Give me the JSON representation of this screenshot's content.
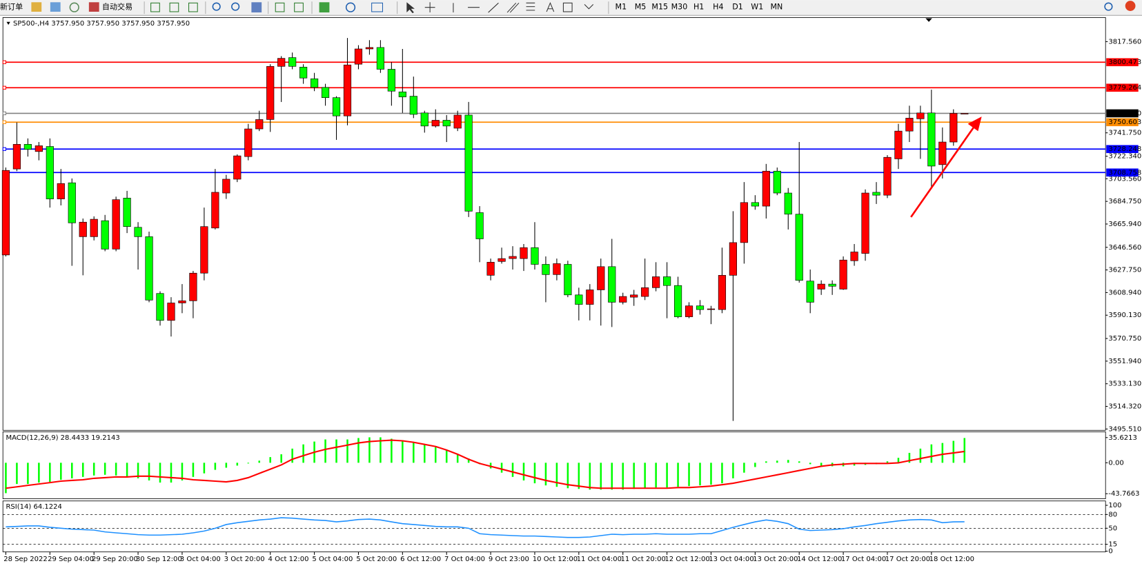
{
  "toolbar": {
    "new_order": "新订单",
    "auto_trading": "自动交易",
    "timeframes": [
      "M1",
      "M5",
      "M15",
      "M30",
      "H1",
      "H4",
      "D1",
      "W1",
      "MN"
    ]
  },
  "chart_data": [
    {
      "type": "candlestick",
      "title": "SP500-,H4  3757.950 3757.950 3757.950 3757.950",
      "categories": [
        "28 Sep 2022",
        null,
        null,
        null,
        "29 Sep 04:00",
        null,
        null,
        null,
        "29 Sep 20:00",
        null,
        null,
        null,
        "30 Sep 12:00",
        null,
        null,
        null,
        "3 Oct 04:00",
        null,
        null,
        null,
        "3 Oct 20:00",
        null,
        null,
        null,
        "4 Oct 12:00",
        null,
        null,
        null,
        "5 Oct 04:00",
        null,
        null,
        null,
        "5 Oct 20:00",
        null,
        null,
        null,
        "6 Oct 12:00",
        null,
        null,
        null,
        "7 Oct 04:00",
        null,
        null,
        null,
        "9 Oct 23:00",
        null,
        null,
        null,
        "10 Oct 12:00",
        null,
        null,
        null,
        "11 Oct 04:00",
        null,
        null,
        null,
        "11 Oct 20:00",
        null,
        null,
        null,
        "12 Oct 12:00",
        null,
        null,
        null,
        "13 Oct 04:00",
        null,
        null,
        null,
        "13 Oct 20:00",
        null,
        null,
        null,
        "14 Oct 12:00",
        null,
        null,
        null,
        "17 Oct 04:00",
        null,
        null,
        null,
        "17 Oct 20:00",
        null,
        null,
        null,
        "18 Oct 12:00",
        null,
        null,
        null
      ],
      "open": [
        3640.2,
        3711.7,
        3732.2,
        3726.2,
        3730.4,
        3686.8,
        3700.2,
        3655.4,
        3655.4,
        3668.7,
        3645.1,
        3687.5,
        3663.2,
        3655.4,
        3608.2,
        3585.8,
        3600.3,
        3602.1,
        3625.1,
        3662.6,
        3691.7,
        3703.2,
        3722.0,
        3745.0,
        3752.8,
        3797.0,
        3804.3,
        3796.4,
        3786.7,
        3779.5,
        3771.0,
        3755.8,
        3798.8,
        3811.5,
        3812.7,
        3794.6,
        3775.8,
        3772.2,
        3758.3,
        3747.4,
        3752.2,
        3745.6,
        3756.5,
        3675.4,
        3623.3,
        3634.8,
        3637.2,
        3637.2,
        3646.3,
        3632.4,
        3623.9,
        3632.4,
        3607.0,
        3599.1,
        3611.2,
        3630.5,
        3600.9,
        3605.1,
        3605.7,
        3613.0,
        3622.1,
        3614.8,
        3588.8,
        3597.9,
        3594.8,
        3594.8,
        3623.3,
        3650.5,
        3683.8,
        3680.8,
        3709.9,
        3691.7,
        3674.1,
        3618.5,
        3611.8,
        3616.0,
        3611.8,
        3635.4,
        3641.5,
        3692.3,
        3689.9,
        3720.1,
        3743.2,
        3753.4,
        3758.3,
        3715.3,
        3734.1,
        3757.95
      ],
      "high": [
        3712.9,
        3750.4,
        3737.1,
        3734.1,
        3737.1,
        3711.7,
        3703.8,
        3670.5,
        3672.3,
        3673.5,
        3688.7,
        3693.5,
        3667.5,
        3659.6,
        3610.0,
        3605.1,
        3616.0,
        3626.9,
        3679.6,
        3711.7,
        3706.8,
        3723.8,
        3749.2,
        3760.1,
        3798.8,
        3805.5,
        3808.5,
        3798.8,
        3791.6,
        3782.5,
        3772.2,
        3820.6,
        3814.6,
        3818.8,
        3818.8,
        3800.6,
        3811.5,
        3788.5,
        3760.1,
        3761.3,
        3756.5,
        3760.1,
        3767.4,
        3680.8,
        3637.2,
        3646.3,
        3647.5,
        3649.3,
        3667.5,
        3639.0,
        3637.2,
        3635.4,
        3613.0,
        3616.0,
        3637.2,
        3653.6,
        3608.8,
        3611.2,
        3637.2,
        3634.2,
        3634.2,
        3622.1,
        3600.9,
        3602.7,
        3597.9,
        3646.3,
        3676.6,
        3700.8,
        3689.9,
        3715.9,
        3712.9,
        3695.9,
        3734.1,
        3628.1,
        3619.1,
        3619.1,
        3639.0,
        3649.3,
        3694.7,
        3700.8,
        3723.2,
        3749.2,
        3764.3,
        3764.3,
        3777.6,
        3746.2,
        3761.3,
        3757.95
      ],
      "low": [
        3639.0,
        3709.9,
        3722.0,
        3718.9,
        3679.6,
        3681.4,
        3631.2,
        3623.3,
        3652.3,
        3643.3,
        3643.3,
        3658.4,
        3628.1,
        3600.9,
        3581.5,
        3572.4,
        3591.8,
        3587.6,
        3619.1,
        3661.4,
        3686.8,
        3700.8,
        3718.9,
        3743.2,
        3742.5,
        3767.4,
        3794.6,
        3782.5,
        3776.4,
        3764.3,
        3735.9,
        3748.0,
        3794.6,
        3806.7,
        3791.6,
        3764.3,
        3758.3,
        3754.0,
        3741.9,
        3746.2,
        3734.1,
        3743.2,
        3671.7,
        3634.2,
        3619.1,
        3633.0,
        3628.1,
        3626.9,
        3628.1,
        3600.9,
        3619.1,
        3605.1,
        3585.8,
        3585.8,
        3581.5,
        3580.3,
        3599.1,
        3597.9,
        3602.7,
        3610.0,
        3587.6,
        3587.6,
        3587.6,
        3590.6,
        3582.7,
        3591.8,
        3502.2,
        3633.0,
        3677.8,
        3670.5,
        3689.9,
        3661.4,
        3617.2,
        3591.8,
        3607.0,
        3607.0,
        3611.2,
        3631.2,
        3635.4,
        3682.6,
        3687.5,
        3711.7,
        3734.1,
        3720.1,
        3695.9,
        3703.8,
        3731.0,
        3757.95
      ],
      "close": [
        3710.5,
        3732.2,
        3728.0,
        3731.0,
        3686.8,
        3699.6,
        3666.9,
        3667.5,
        3669.9,
        3645.1,
        3686.2,
        3663.8,
        3655.4,
        3602.7,
        3585.8,
        3600.3,
        3602.1,
        3625.1,
        3663.8,
        3692.3,
        3703.2,
        3722.6,
        3745.0,
        3752.8,
        3797.0,
        3803.7,
        3797.0,
        3787.3,
        3779.5,
        3771.0,
        3755.8,
        3798.2,
        3811.5,
        3812.7,
        3794.6,
        3776.4,
        3771.6,
        3757.1,
        3747.4,
        3752.2,
        3747.4,
        3756.5,
        3676.6,
        3653.6,
        3634.2,
        3637.2,
        3639.0,
        3646.3,
        3632.4,
        3623.9,
        3633.0,
        3607.0,
        3599.1,
        3611.2,
        3630.5,
        3600.9,
        3605.7,
        3607.0,
        3613.0,
        3622.1,
        3614.8,
        3588.8,
        3597.9,
        3594.8,
        3595.4,
        3623.3,
        3650.5,
        3683.8,
        3680.8,
        3709.9,
        3691.7,
        3674.1,
        3619.1,
        3600.9,
        3616.0,
        3614.2,
        3636.0,
        3642.7,
        3691.7,
        3689.9,
        3721.4,
        3743.2,
        3754.0,
        3758.3,
        3714.1,
        3734.1,
        3757.95,
        3757.95
      ],
      "up_color": "#ff0000",
      "down_color": "#00ff00",
      "ylim": [
        3494.4,
        3837.6
      ],
      "yticks": [
        {
          "value": 3817.56,
          "label": "3817.560"
        },
        {
          "value": 3741.75,
          "label": "3741.750"
        },
        {
          "value": 3722.34,
          "label": "3722.340"
        },
        {
          "value": 3703.56,
          "label": "3703.560"
        },
        {
          "value": 3684.75,
          "label": "3684.750"
        },
        {
          "value": 3665.94,
          "label": "3665.940"
        },
        {
          "value": 3646.56,
          "label": "3646.560"
        },
        {
          "value": 3627.75,
          "label": "3627.750"
        },
        {
          "value": 3608.94,
          "label": "3608.940"
        },
        {
          "value": 3590.13,
          "label": "3590.130"
        },
        {
          "value": 3570.75,
          "label": "3570.750"
        },
        {
          "value": 3551.94,
          "label": "3551.940"
        },
        {
          "value": 3533.13,
          "label": "3533.130"
        },
        {
          "value": 3514.32,
          "label": "3514.320"
        },
        {
          "value": 3495.51,
          "label": "3495.510"
        }
      ],
      "levels": [
        {
          "value": 3800.473,
          "label": "3800.473",
          "color": "#ff0000"
        },
        {
          "value": 3779.264,
          "label": "3779.264",
          "color": "#ff0000"
        },
        {
          "value": 3757.95,
          "label": "3757.950",
          "color": "#808080"
        },
        {
          "value": 3750.603,
          "label": "3750.603",
          "color": "#ff8c00"
        },
        {
          "value": 3728.248,
          "label": "3728.248",
          "color": "#0000ff"
        },
        {
          "value": 3708.758,
          "label": "3708.758",
          "color": "#0000ff"
        }
      ]
    },
    {
      "type": "macd",
      "title": "MACD(12,26,9) 28.4433 19.2143",
      "histogram": [
        -43,
        -30,
        -30,
        -28,
        -27,
        -24,
        -22,
        -20,
        -18,
        -17,
        -18,
        -20,
        -22,
        -25,
        -28,
        -28,
        -25,
        -20,
        -15,
        -10,
        -7,
        -4,
        -1,
        3,
        8,
        12,
        20,
        26,
        30,
        33,
        33,
        33,
        35,
        36,
        36,
        34,
        32,
        29,
        26,
        22,
        18,
        12,
        6,
        -2,
        -8,
        -14,
        -20,
        -25,
        -29,
        -32,
        -34,
        -36,
        -37,
        -38,
        -38,
        -38,
        -38,
        -37,
        -36,
        -35,
        -35,
        -34,
        -33,
        -32,
        -31,
        -29,
        -22,
        -14,
        -6,
        2,
        3,
        4,
        2,
        -2,
        -4,
        -5,
        -5,
        -4,
        -3,
        -2,
        2,
        7,
        14,
        20,
        26,
        28,
        31,
        35
      ],
      "signal": [
        -36,
        -34,
        -32,
        -30,
        -28,
        -26,
        -25,
        -24,
        -22,
        -21,
        -20,
        -20,
        -19,
        -19,
        -20,
        -21,
        -22,
        -24,
        -25,
        -26,
        -27,
        -25,
        -21,
        -15,
        -9,
        -3,
        5,
        10,
        15,
        19,
        22,
        25,
        28,
        30,
        31,
        32,
        31,
        29,
        26,
        23,
        18,
        12,
        5,
        -1,
        -5,
        -9,
        -13,
        -17,
        -21,
        -25,
        -28,
        -31,
        -33,
        -35,
        -36,
        -36,
        -36,
        -36,
        -36,
        -36,
        -36,
        -35,
        -35,
        -34,
        -33,
        -31,
        -29,
        -26,
        -23,
        -20,
        -17,
        -14,
        -11,
        -8,
        -5,
        -3,
        -2,
        -1,
        -1,
        -1,
        -1,
        0,
        3,
        6,
        9,
        12,
        14,
        16
      ],
      "histogram_color": "#00ff00",
      "signal_color": "#ff0000",
      "ylim": [
        -50.9,
        43.8
      ],
      "yticks": [
        35.6213,
        {
          "value": 0,
          "label": "0.00"
        },
        -43.7663
      ]
    },
    {
      "type": "line",
      "title": "RSI(14) 64.1224",
      "values": [
        53,
        54,
        55,
        55,
        52,
        50,
        48,
        47,
        46,
        42,
        40,
        38,
        36,
        35,
        35,
        36,
        37,
        40,
        44,
        50,
        58,
        62,
        65,
        68,
        70,
        73,
        72,
        70,
        68,
        67,
        64,
        66,
        69,
        70,
        68,
        64,
        60,
        58,
        56,
        54,
        53,
        53,
        50,
        38,
        36,
        35,
        34,
        33,
        33,
        32,
        31,
        30,
        30,
        31,
        34,
        37,
        36,
        37,
        37,
        38,
        37,
        37,
        37,
        38,
        38,
        45,
        52,
        58,
        64,
        68,
        65,
        60,
        48,
        45,
        46,
        47,
        49,
        53,
        56,
        60,
        63,
        66,
        68,
        69,
        68,
        62,
        64,
        64.1224
      ],
      "color": "#1e90ff",
      "ylim": [
        -1.6,
        109.5
      ],
      "yticks": [
        100,
        80,
        50,
        15,
        0
      ],
      "levels": [
        80,
        50,
        15
      ]
    }
  ]
}
